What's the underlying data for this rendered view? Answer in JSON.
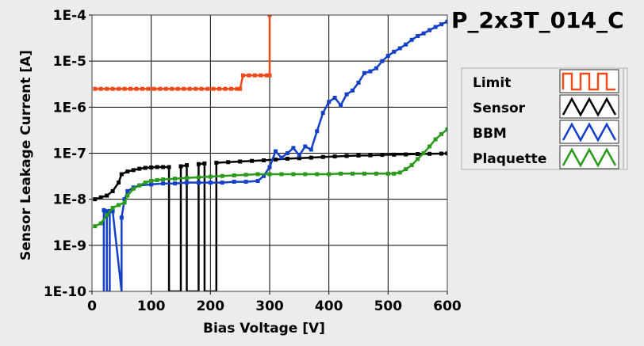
{
  "chart_data": {
    "type": "line",
    "title": "P_2x3T_014_C",
    "xlabel": "Bias Voltage [V]",
    "ylabel": "Sensor Leakage Current [A]",
    "xlim": [
      0,
      600
    ],
    "ylim": [
      1e-10,
      0.0001
    ],
    "yscale": "log",
    "x_ticks": [
      {
        "value": 0,
        "label": "0"
      },
      {
        "value": 100,
        "label": "100"
      },
      {
        "value": 200,
        "label": "200"
      },
      {
        "value": 300,
        "label": "300"
      },
      {
        "value": 400,
        "label": "400"
      },
      {
        "value": 500,
        "label": "500"
      },
      {
        "value": 600,
        "label": "600"
      }
    ],
    "y_ticks": [
      {
        "value": 1e-10,
        "label": "1E-10"
      },
      {
        "value": 1e-09,
        "label": "1E-9"
      },
      {
        "value": 1e-08,
        "label": "1E-8"
      },
      {
        "value": 1e-07,
        "label": "1E-7"
      },
      {
        "value": 1e-06,
        "label": "1E-6"
      },
      {
        "value": 1e-05,
        "label": "1E-5"
      },
      {
        "value": 0.0001,
        "label": "1E-4"
      }
    ],
    "grid": true,
    "legend_position": "right",
    "series": [
      {
        "name": "Limit",
        "color": "#f04a1a",
        "points": [
          [
            5,
            2.5e-06
          ],
          [
            15,
            2.5e-06
          ],
          [
            25,
            2.5e-06
          ],
          [
            35,
            2.5e-06
          ],
          [
            45,
            2.5e-06
          ],
          [
            55,
            2.5e-06
          ],
          [
            65,
            2.5e-06
          ],
          [
            75,
            2.5e-06
          ],
          [
            85,
            2.5e-06
          ],
          [
            95,
            2.5e-06
          ],
          [
            105,
            2.5e-06
          ],
          [
            115,
            2.5e-06
          ],
          [
            125,
            2.5e-06
          ],
          [
            135,
            2.5e-06
          ],
          [
            145,
            2.5e-06
          ],
          [
            155,
            2.5e-06
          ],
          [
            165,
            2.5e-06
          ],
          [
            175,
            2.5e-06
          ],
          [
            185,
            2.5e-06
          ],
          [
            195,
            2.5e-06
          ],
          [
            205,
            2.5e-06
          ],
          [
            215,
            2.5e-06
          ],
          [
            225,
            2.5e-06
          ],
          [
            235,
            2.5e-06
          ],
          [
            245,
            2.5e-06
          ],
          [
            250,
            2.5e-06
          ],
          [
            255,
            4.9e-06
          ],
          [
            265,
            4.9e-06
          ],
          [
            275,
            4.9e-06
          ],
          [
            285,
            4.9e-06
          ],
          [
            295,
            4.9e-06
          ],
          [
            300,
            4.9e-06
          ],
          [
            300,
            0.0001
          ]
        ]
      },
      {
        "name": "Sensor",
        "color": "#000000",
        "points": [
          [
            5,
            1e-08
          ],
          [
            15,
            1.1e-08
          ],
          [
            25,
            1.2e-08
          ],
          [
            35,
            1.5e-08
          ],
          [
            45,
            2.3e-08
          ],
          [
            50,
            3.5e-08
          ],
          [
            60,
            4e-08
          ],
          [
            70,
            4.3e-08
          ],
          [
            80,
            4.6e-08
          ],
          [
            90,
            4.8e-08
          ],
          [
            100,
            4.9e-08
          ],
          [
            110,
            5e-08
          ],
          [
            120,
            5e-08
          ],
          [
            130,
            5e-08
          ],
          [
            130,
            1e-10
          ],
          [
            150,
            1e-10
          ],
          [
            150,
            5.2e-08
          ],
          [
            160,
            5.5e-08
          ],
          [
            160,
            1e-10
          ],
          [
            180,
            1e-10
          ],
          [
            180,
            5.8e-08
          ],
          [
            190,
            6e-08
          ],
          [
            190,
            1e-10
          ],
          [
            210,
            1e-10
          ],
          [
            210,
            6.2e-08
          ],
          [
            230,
            6.4e-08
          ],
          [
            250,
            6.6e-08
          ],
          [
            270,
            6.8e-08
          ],
          [
            290,
            7e-08
          ],
          [
            310,
            7.3e-08
          ],
          [
            330,
            7.6e-08
          ],
          [
            350,
            7.8e-08
          ],
          [
            370,
            8e-08
          ],
          [
            390,
            8.3e-08
          ],
          [
            410,
            8.5e-08
          ],
          [
            430,
            8.7e-08
          ],
          [
            450,
            8.9e-08
          ],
          [
            470,
            9e-08
          ],
          [
            490,
            9.2e-08
          ],
          [
            510,
            9.3e-08
          ],
          [
            530,
            9.4e-08
          ],
          [
            550,
            9.6e-08
          ],
          [
            570,
            9.7e-08
          ],
          [
            590,
            9.8e-08
          ],
          [
            600,
            9.9e-08
          ]
        ]
      },
      {
        "name": "BBM",
        "color": "#1440c8",
        "points": [
          [
            20,
            1e-10
          ],
          [
            20,
            5.8e-09
          ],
          [
            25,
            5.5e-09
          ],
          [
            25,
            1e-10
          ],
          [
            30,
            1e-10
          ],
          [
            30,
            5.6e-09
          ],
          [
            35,
            5.5e-09
          ],
          [
            50,
            1e-10
          ],
          [
            50,
            4e-09
          ],
          [
            55,
            1e-08
          ],
          [
            60,
            1.5e-08
          ],
          [
            70,
            1.8e-08
          ],
          [
            80,
            2e-08
          ],
          [
            100,
            2.1e-08
          ],
          [
            120,
            2.2e-08
          ],
          [
            140,
            2.2e-08
          ],
          [
            160,
            2.3e-08
          ],
          [
            180,
            2.3e-08
          ],
          [
            200,
            2.3e-08
          ],
          [
            220,
            2.3e-08
          ],
          [
            240,
            2.4e-08
          ],
          [
            260,
            2.4e-08
          ],
          [
            280,
            2.5e-08
          ],
          [
            290,
            3.2e-08
          ],
          [
            300,
            5e-08
          ],
          [
            310,
            1.1e-07
          ],
          [
            320,
            8e-08
          ],
          [
            330,
            1e-07
          ],
          [
            340,
            1.3e-07
          ],
          [
            350,
            9e-08
          ],
          [
            360,
            1.4e-07
          ],
          [
            370,
            1.2e-07
          ],
          [
            380,
            3e-07
          ],
          [
            390,
            7.5e-07
          ],
          [
            400,
            1.3e-06
          ],
          [
            410,
            1.6e-06
          ],
          [
            420,
            1.1e-06
          ],
          [
            430,
            1.9e-06
          ],
          [
            440,
            2.3e-06
          ],
          [
            450,
            3.4e-06
          ],
          [
            460,
            5.5e-06
          ],
          [
            470,
            6e-06
          ],
          [
            480,
            7e-06
          ],
          [
            490,
            1e-05
          ],
          [
            500,
            1.3e-05
          ],
          [
            510,
            1.6e-05
          ],
          [
            520,
            1.9e-05
          ],
          [
            530,
            2.3e-05
          ],
          [
            540,
            2.9e-05
          ],
          [
            550,
            3.5e-05
          ],
          [
            560,
            4e-05
          ],
          [
            570,
            4.7e-05
          ],
          [
            580,
            5.5e-05
          ],
          [
            590,
            6.3e-05
          ],
          [
            600,
            7.2e-05
          ]
        ]
      },
      {
        "name": "Plaquette",
        "color": "#2a9a1a",
        "points": [
          [
            5,
            2.6e-09
          ],
          [
            15,
            3e-09
          ],
          [
            25,
            4.5e-09
          ],
          [
            35,
            6.5e-09
          ],
          [
            45,
            7.5e-09
          ],
          [
            55,
            8.5e-09
          ],
          [
            60,
            1.2e-08
          ],
          [
            70,
            1.7e-08
          ],
          [
            80,
            2e-08
          ],
          [
            90,
            2.3e-08
          ],
          [
            100,
            2.5e-08
          ],
          [
            110,
            2.6e-08
          ],
          [
            120,
            2.7e-08
          ],
          [
            140,
            2.8e-08
          ],
          [
            160,
            2.9e-08
          ],
          [
            180,
            3e-08
          ],
          [
            200,
            3.1e-08
          ],
          [
            220,
            3.2e-08
          ],
          [
            240,
            3.3e-08
          ],
          [
            260,
            3.4e-08
          ],
          [
            280,
            3.5e-08
          ],
          [
            300,
            3.5e-08
          ],
          [
            320,
            3.5e-08
          ],
          [
            340,
            3.5e-08
          ],
          [
            360,
            3.5e-08
          ],
          [
            380,
            3.5e-08
          ],
          [
            400,
            3.5e-08
          ],
          [
            420,
            3.6e-08
          ],
          [
            440,
            3.6e-08
          ],
          [
            460,
            3.6e-08
          ],
          [
            480,
            3.6e-08
          ],
          [
            500,
            3.6e-08
          ],
          [
            510,
            3.6e-08
          ],
          [
            520,
            3.8e-08
          ],
          [
            530,
            4.5e-08
          ],
          [
            540,
            5.5e-08
          ],
          [
            550,
            7.5e-08
          ],
          [
            560,
            1e-07
          ],
          [
            570,
            1.4e-07
          ],
          [
            580,
            2e-07
          ],
          [
            590,
            2.6e-07
          ],
          [
            600,
            3.3e-07
          ]
        ]
      }
    ]
  }
}
